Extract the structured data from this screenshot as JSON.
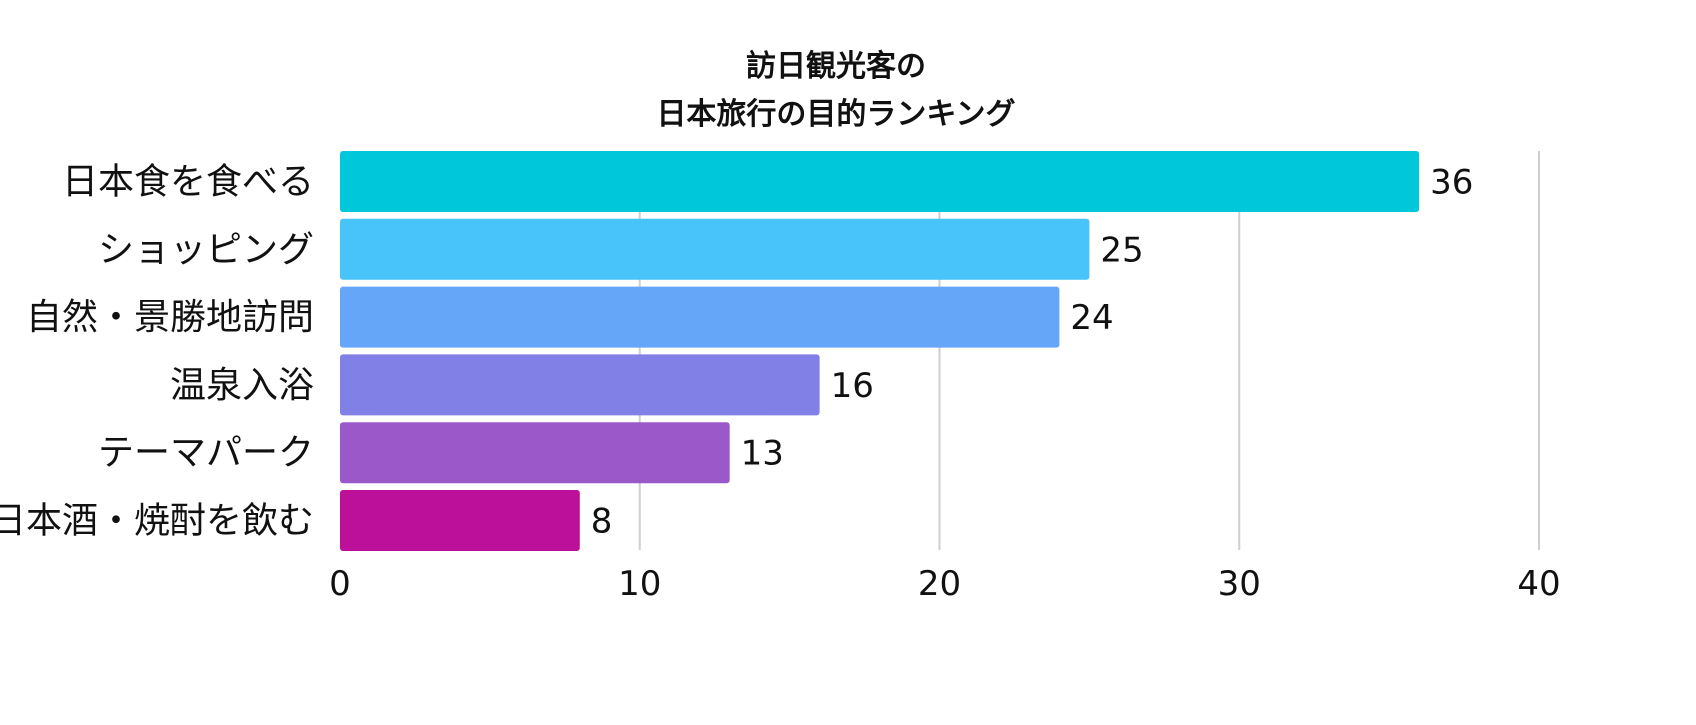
{
  "chart_data": {
    "type": "bar",
    "orientation": "horizontal",
    "title": [
      "訪日観光客の",
      "日本旅行の目的ランキング"
    ],
    "categories": [
      "日本食を食べる",
      "ショッピング",
      "自然・景勝地訪問",
      "温泉入浴",
      "テーマパーク",
      "日本酒・焼酎を飲む"
    ],
    "values": [
      36,
      25,
      24,
      16,
      13,
      8
    ],
    "colors": [
      "#00C8DA",
      "#48C4FA",
      "#66A6F8",
      "#8080E6",
      "#9A58C8",
      "#BC109A"
    ],
    "xlim": [
      0,
      40
    ],
    "x_ticks": [
      0,
      10,
      20,
      30,
      40
    ],
    "grid": true,
    "legend": "none"
  }
}
